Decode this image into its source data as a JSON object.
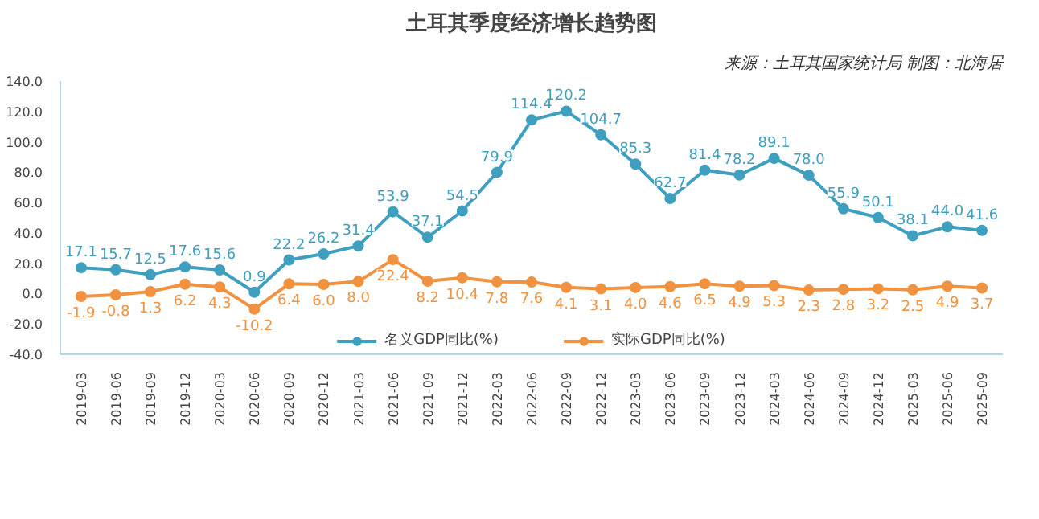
{
  "chart_data": {
    "type": "line",
    "title": "土耳其季度经济增长趋势图",
    "subtitle": "来源：土耳其国家统计局 制图：北海居",
    "categories": [
      "2019-03",
      "2019-06",
      "2019-09",
      "2019-12",
      "2020-03",
      "2020-06",
      "2020-09",
      "2020-12",
      "2021-03",
      "2021-06",
      "2021-09",
      "2021-12",
      "2022-03",
      "2022-06",
      "2022-09",
      "2022-12",
      "2023-03",
      "2023-06",
      "2023-09",
      "2023-12",
      "2024-03",
      "2024-06",
      "2024-09",
      "2024-12",
      "2025-03",
      "2025-06",
      "2025-09"
    ],
    "series": [
      {
        "name": "名义GDP同比(%)",
        "color": "#3f9fbf",
        "value_labels": [
          "17.1",
          "15.7",
          "12.5",
          "17.6",
          "15.6",
          "0.9",
          "22.2",
          "26.2",
          "31.4",
          "53.9",
          "37.1",
          "54.5",
          "79.9",
          "114.4",
          "120.2",
          "104.7",
          "85.3",
          "62.7",
          "81.4",
          "78.2",
          "89.1",
          "78.0",
          "55.9",
          "50.1",
          "38.1",
          "44.0",
          "41.6"
        ],
        "values": [
          17.1,
          15.7,
          12.5,
          17.6,
          15.6,
          0.9,
          22.2,
          26.2,
          31.4,
          53.9,
          37.1,
          54.5,
          79.9,
          114.4,
          120.2,
          104.7,
          85.3,
          62.7,
          81.4,
          78.2,
          89.1,
          78.0,
          55.9,
          50.1,
          38.1,
          44.0,
          41.6
        ]
      },
      {
        "name": "实际GDP同比(%)",
        "color": "#f0923f",
        "value_labels": [
          "-1.9",
          "-0.8",
          "1.3",
          "6.2",
          "4.3",
          "-10.2",
          "6.4",
          "6.0",
          "8.0",
          "22.4",
          "8.2",
          "10.4",
          "7.8",
          "7.6",
          "4.1",
          "3.1",
          "4.0",
          "4.6",
          "6.5",
          "4.9",
          "5.3",
          "2.3",
          "2.8",
          "3.2",
          "2.5",
          "4.9",
          "3.7"
        ],
        "values": [
          -1.9,
          -0.8,
          1.3,
          6.2,
          4.3,
          -10.2,
          6.4,
          6.0,
          8.0,
          22.4,
          8.2,
          10.4,
          7.8,
          7.6,
          4.1,
          3.1,
          4.0,
          4.6,
          6.5,
          4.9,
          5.3,
          2.3,
          2.8,
          3.2,
          2.5,
          4.9,
          3.7
        ]
      }
    ],
    "ylim": [
      -40,
      140
    ],
    "yticks": [
      {
        "value": -40,
        "label": "-40.0"
      },
      {
        "value": -20,
        "label": "-20.0"
      },
      {
        "value": 0,
        "label": "0.0"
      },
      {
        "value": 20,
        "label": "20.0"
      },
      {
        "value": 40,
        "label": "40.0"
      },
      {
        "value": 60,
        "label": "60.0"
      },
      {
        "value": 80,
        "label": "80.0"
      },
      {
        "value": 100,
        "label": "100.0"
      },
      {
        "value": 120,
        "label": "120.0"
      },
      {
        "value": 140,
        "label": "140.0"
      }
    ],
    "legend": "bottom",
    "marker": "circle",
    "line_style": "solid",
    "grid": false
  }
}
